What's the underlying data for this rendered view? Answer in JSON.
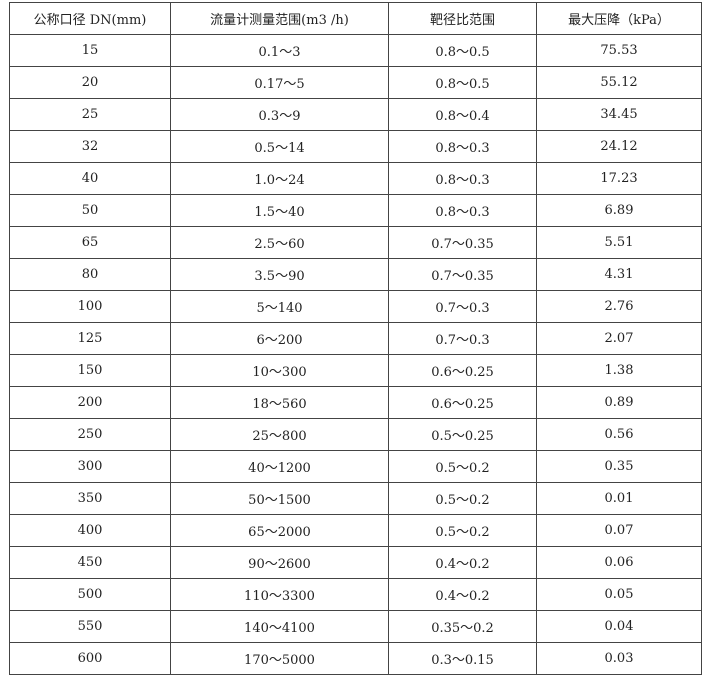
{
  "table": {
    "headers": [
      "公称口径 DN(mm)",
      "流量计测量范围(m3 /h)",
      "靶径比范围",
      "最大压降（kPa）"
    ],
    "rows": [
      [
        "15",
        "0.1～3",
        "0.8～0.5",
        "75.53"
      ],
      [
        "20",
        "0.17～5",
        "0.8～0.5",
        "55.12"
      ],
      [
        "25",
        "0.3～9",
        "0.8～0.4",
        "34.45"
      ],
      [
        "32",
        "0.5～14",
        "0.8～0.3",
        "24.12"
      ],
      [
        "40",
        "1.0～24",
        "0.8～0.3",
        "17.23"
      ],
      [
        "50",
        "1.5～40",
        "0.8～0.3",
        "6.89"
      ],
      [
        "65",
        "2.5～60",
        "0.7～0.35",
        "5.51"
      ],
      [
        "80",
        "3.5～90",
        "0.7～0.35",
        "4.31"
      ],
      [
        "100",
        "5～140",
        "0.7～0.3",
        "2.76"
      ],
      [
        "125",
        "6～200",
        "0.7～0.3",
        "2.07"
      ],
      [
        "150",
        "10～300",
        "0.6～0.25",
        "1.38"
      ],
      [
        "200",
        "18～560",
        "0.6～0.25",
        "0.89"
      ],
      [
        "250",
        "25～800",
        "0.5～0.25",
        "0.56"
      ],
      [
        "300",
        "40～1200",
        "0.5～0.2",
        "0.35"
      ],
      [
        "350",
        "50～1500",
        "0.5～0.2",
        "0.01"
      ],
      [
        "400",
        "65～2000",
        "0.5～0.2",
        "0.07"
      ],
      [
        "450",
        "90～2600",
        "0.4～0.2",
        "0.06"
      ],
      [
        "500",
        "110～3300",
        "0.4～0.2",
        "0.05"
      ],
      [
        "550",
        "140～4100",
        "0.35～0.2",
        "0.04"
      ],
      [
        "600",
        "170～5000",
        "0.3～0.15",
        "0.03"
      ]
    ]
  }
}
